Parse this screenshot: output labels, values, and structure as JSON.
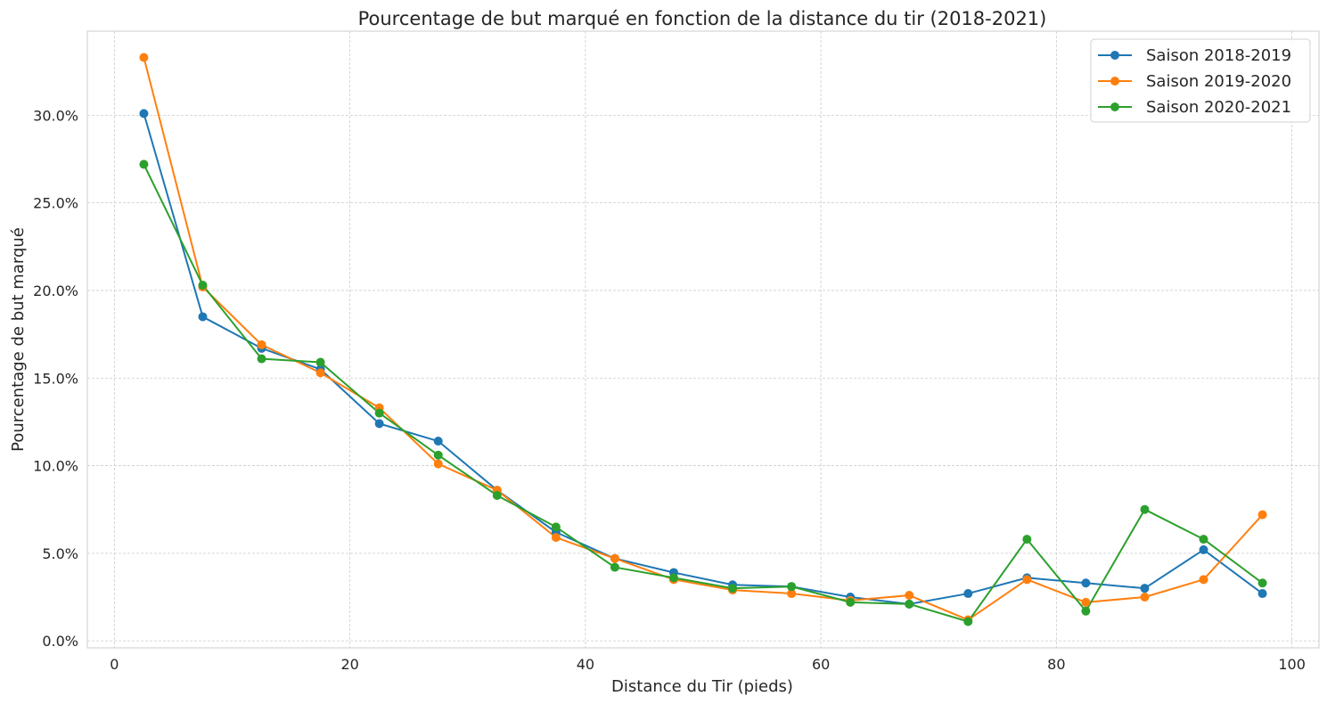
{
  "chart_data": {
    "type": "line",
    "title": "Pourcentage de but marqué en fonction de la distance du tir (2018-2021)",
    "xlabel": "Distance du Tir (pieds)",
    "ylabel": "Pourcentage de but marqué",
    "xlim": [
      -2.3,
      102.3
    ],
    "ylim": [
      -0.004,
      0.348
    ],
    "xticks": [
      0,
      20,
      40,
      60,
      80,
      100
    ],
    "xtick_labels": [
      "0",
      "20",
      "40",
      "60",
      "80",
      "100"
    ],
    "yticks": [
      0.0,
      0.05,
      0.1,
      0.15,
      0.2,
      0.25,
      0.3
    ],
    "ytick_labels": [
      "0.0%",
      "5.0%",
      "10.0%",
      "15.0%",
      "20.0%",
      "25.0%",
      "30.0%"
    ],
    "grid": true,
    "legend_position": "top-right",
    "x": [
      2.5,
      7.5,
      12.5,
      17.5,
      22.5,
      27.5,
      32.5,
      37.5,
      42.5,
      47.5,
      52.5,
      57.5,
      62.5,
      67.5,
      72.5,
      77.5,
      82.5,
      87.5,
      92.5,
      97.5
    ],
    "series": [
      {
        "name": "Saison 2018-2019",
        "color": "#1f77b4",
        "values": [
          0.301,
          0.185,
          0.167,
          0.155,
          0.124,
          0.114,
          0.086,
          0.062,
          0.047,
          0.039,
          0.032,
          0.031,
          0.025,
          0.021,
          0.027,
          0.036,
          0.033,
          0.03,
          0.052,
          0.027
        ]
      },
      {
        "name": "Saison 2019-2020",
        "color": "#ff7f0e",
        "values": [
          0.333,
          0.202,
          0.169,
          0.153,
          0.133,
          0.101,
          0.086,
          0.059,
          0.047,
          0.035,
          0.029,
          0.027,
          0.023,
          0.026,
          0.012,
          0.035,
          0.022,
          0.025,
          0.035,
          0.072
        ]
      },
      {
        "name": "Saison 2020-2021",
        "color": "#2ca02c",
        "values": [
          0.272,
          0.203,
          0.161,
          0.159,
          0.13,
          0.106,
          0.083,
          0.065,
          0.042,
          0.036,
          0.03,
          0.031,
          0.022,
          0.021,
          0.011,
          0.058,
          0.017,
          0.075,
          0.058,
          0.033
        ]
      }
    ]
  }
}
